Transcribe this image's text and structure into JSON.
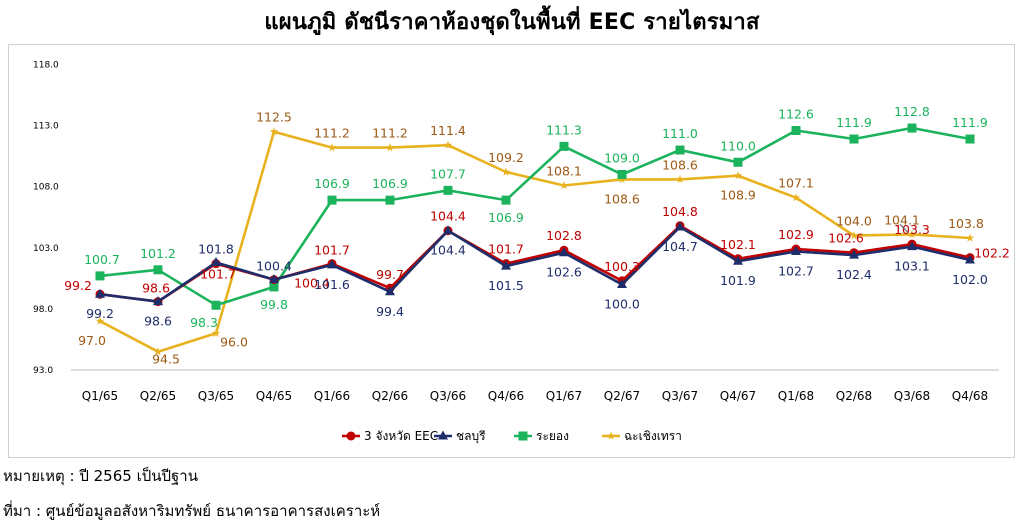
{
  "chart_data": {
    "type": "line",
    "title": "แผนภูมิ ดัชนีราคาห้องชุดในพื้นที่ EEC รายไตรมาส",
    "categories": [
      "Q1/65",
      "Q2/65",
      "Q3/65",
      "Q4/65",
      "Q1/66",
      "Q2/66",
      "Q3/66",
      "Q4/66",
      "Q1/67",
      "Q2/67",
      "Q3/67",
      "Q4/67",
      "Q1/68",
      "Q2/68",
      "Q3/68",
      "Q4/68"
    ],
    "ylim": [
      93.0,
      118.0
    ],
    "yticks": [
      "93.0",
      "98.0",
      "103.0",
      "108.0",
      "113.0",
      "118.0"
    ],
    "grid": false,
    "legend_position": "bottom",
    "series": [
      {
        "name": "3 จังหวัด EEC",
        "color": "#C00000",
        "marker": "circle",
        "values": [
          99.2,
          98.6,
          101.7,
          100.4,
          101.7,
          99.7,
          104.4,
          101.7,
          102.8,
          100.3,
          104.8,
          102.1,
          102.9,
          102.6,
          103.3,
          102.2
        ]
      },
      {
        "name": "ชลบุรี",
        "color": "#1F2D6B",
        "marker": "triangle",
        "values": [
          99.2,
          98.6,
          101.8,
          100.4,
          101.6,
          99.4,
          104.4,
          101.5,
          102.6,
          100.0,
          104.7,
          101.9,
          102.7,
          102.4,
          103.1,
          102.0
        ]
      },
      {
        "name": "ระยอง",
        "color": "#1BB35B",
        "marker": "square",
        "values": [
          100.7,
          101.2,
          98.3,
          99.8,
          106.9,
          106.9,
          107.7,
          106.9,
          111.3,
          109.0,
          111.0,
          110.0,
          112.6,
          111.9,
          112.8,
          111.9
        ]
      },
      {
        "name": "ฉะเชิงเทรา",
        "color": "#E8B21E",
        "marker": "star",
        "values": [
          97.0,
          94.5,
          96.0,
          112.5,
          111.2,
          111.2,
          111.4,
          109.2,
          108.1,
          108.6,
          108.6,
          108.9,
          107.1,
          104.0,
          104.1,
          103.8
        ]
      }
    ],
    "label_colors": {
      "eec": "#C00000",
      "chonburi": "#1F2D6B",
      "rayong": "#1BB35B",
      "chachoengsao": "#9C5A16"
    }
  },
  "notes": {
    "remark": "หมายเหตุ : ปี 2565 เป็นปีฐาน",
    "source": "ที่มา : ศูนย์ข้อมูลอสังหาริมทรัพย์ ธนาคารอาคารสงเคราะห์"
  }
}
